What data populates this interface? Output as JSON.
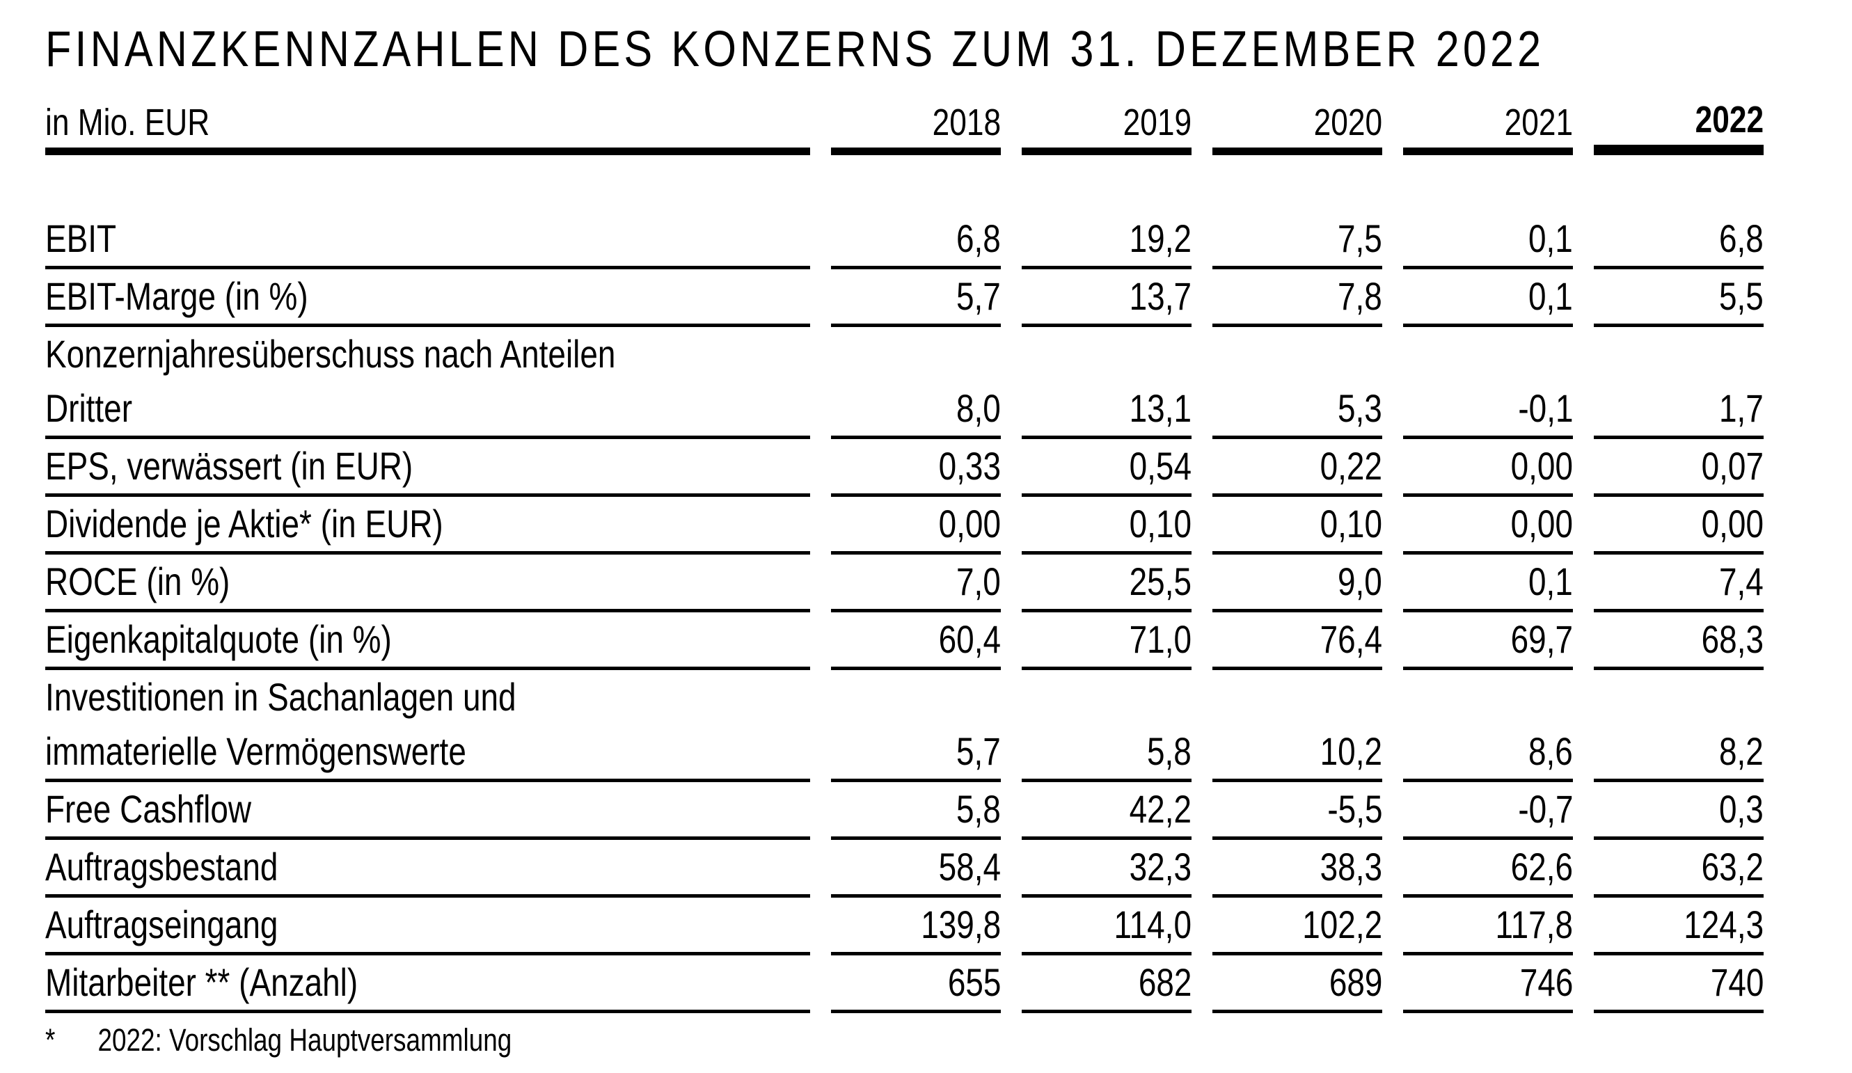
{
  "page": {
    "background": "#ffffff",
    "text_color": "#000000",
    "rule_color": "#000000"
  },
  "title": "FINANZKENNZAHLEN DES KONZERNS ZUM 31. DEZEMBER 2022",
  "header": {
    "unit_label": "in Mio. EUR",
    "years": [
      "2018",
      "2019",
      "2020",
      "2021",
      "2022"
    ],
    "highlighted_year": "2022"
  },
  "table": {
    "rows": [
      {
        "label": "EBIT",
        "values": [
          "6,8",
          "19,2",
          "7,5",
          "0,1",
          "6,8"
        ]
      },
      {
        "label": "EBIT-Marge (in %)",
        "values": [
          "5,7",
          "13,7",
          "7,8",
          "0,1",
          "5,5"
        ]
      },
      {
        "label": "Konzernjahresüberschuss nach Anteilen",
        "label2": "Dritter",
        "values": [
          "8,0",
          "13,1",
          "5,3",
          "-0,1",
          "1,7"
        ]
      },
      {
        "label": "EPS, verwässert (in EUR)",
        "values": [
          "0,33",
          "0,54",
          "0,22",
          "0,00",
          "0,07"
        ]
      },
      {
        "label": "Dividende je Aktie* (in EUR)",
        "values": [
          "0,00",
          "0,10",
          "0,10",
          "0,00",
          "0,00"
        ]
      },
      {
        "label": "ROCE (in %)",
        "values": [
          "7,0",
          "25,5",
          "9,0",
          "0,1",
          "7,4"
        ]
      },
      {
        "label": "Eigenkapitalquote (in %)",
        "values": [
          "60,4",
          "71,0",
          "76,4",
          "69,7",
          "68,3"
        ]
      },
      {
        "label": "Investitionen in Sachanlagen und",
        "label2": "immaterielle Vermögenswerte",
        "values": [
          "5,7",
          "5,8",
          "10,2",
          "8,6",
          "8,2"
        ]
      },
      {
        "label": "Free Cashflow",
        "values": [
          "5,8",
          "42,2",
          "-5,5",
          "-0,7",
          "0,3"
        ]
      },
      {
        "label": "Auftragsbestand",
        "values": [
          "58,4",
          "32,3",
          "38,3",
          "62,6",
          "63,2"
        ]
      },
      {
        "label": "Auftragseingang",
        "values": [
          "139,8",
          "114,0",
          "102,2",
          "117,8",
          "124,3"
        ]
      },
      {
        "label": "Mitarbeiter ** (Anzahl)",
        "values": [
          "655",
          "682",
          "689",
          "746",
          "740"
        ]
      }
    ]
  },
  "footnote": {
    "marker": "*",
    "text": "2022: Vorschlag Hauptversammlung"
  }
}
